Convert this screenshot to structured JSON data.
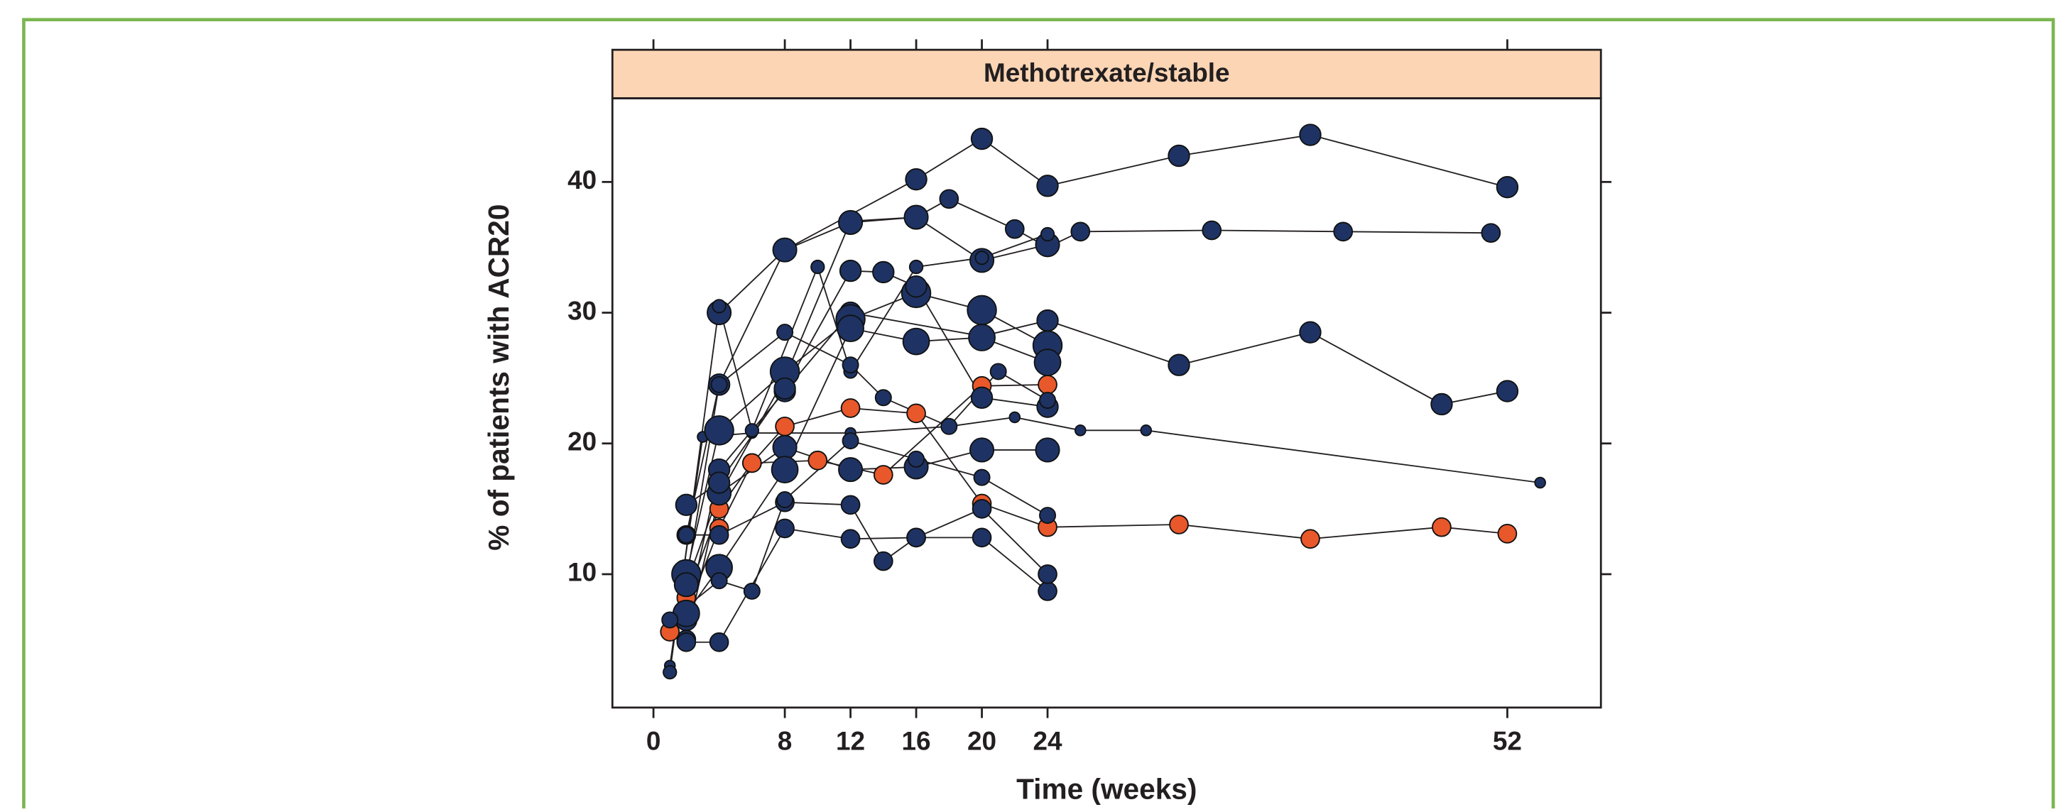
{
  "chart_data": {
    "type": "scatter",
    "panel_title": "Methotrexate/stable",
    "xlabel": "Time (weeks)",
    "ylabel": "% of patients with ACR20",
    "xlim": [
      -2.5,
      57.7
    ],
    "ylim": [
      -0.2,
      46.4
    ],
    "xticks": [
      0,
      8,
      12,
      16,
      20,
      24,
      52
    ],
    "yticks": [
      10,
      20,
      30,
      40
    ],
    "series": [
      {
        "color": "#1e3363",
        "size": 8,
        "x": [
          2,
          4,
          8,
          16,
          20,
          24,
          32,
          40,
          52
        ],
        "values": [
          9.5,
          24.5,
          34.8,
          40.2,
          43.3,
          39.7,
          42,
          43.6,
          39.6
        ]
      },
      {
        "color": "#1e3363",
        "size": 7,
        "x": [
          2,
          4,
          8,
          12,
          16,
          18,
          22,
          24,
          26,
          34,
          42,
          51
        ],
        "values": [
          5,
          16,
          25,
          37,
          37.3,
          38.7,
          36.4,
          35,
          36.2,
          36.3,
          36.2,
          36.1
        ]
      },
      {
        "color": "#1e3363",
        "size": 8,
        "x": [
          2,
          4,
          8,
          12,
          20,
          24,
          32,
          40,
          48,
          52
        ],
        "values": [
          6.5,
          18,
          24,
          30,
          28.2,
          29.4,
          26,
          28.5,
          23,
          24
        ]
      },
      {
        "color": "#1e3363",
        "size": 4,
        "x": [
          1,
          3,
          6,
          12,
          18,
          22,
          26,
          30,
          54
        ],
        "values": [
          3,
          20.5,
          20.8,
          20.8,
          21.3,
          22,
          21,
          21,
          17
        ]
      },
      {
        "color": "#e8582a",
        "size": 7,
        "x": [
          1,
          2,
          4,
          6,
          8,
          12,
          16,
          20,
          24,
          32,
          40,
          48,
          52
        ],
        "values": [
          5.6,
          7,
          13.5,
          18.5,
          21.3,
          22.7,
          22.3,
          15.4,
          13.6,
          13.8,
          12.7,
          13.6,
          13.1
        ]
      },
      {
        "color": "#e8582a",
        "size": 7,
        "x": [
          2,
          4,
          6,
          10,
          14,
          20,
          24
        ],
        "values": [
          8.2,
          15,
          18.5,
          18.7,
          17.6,
          24.4,
          24.5
        ]
      },
      {
        "color": "#1e3363",
        "size": 7,
        "x": [
          2,
          4,
          8,
          12,
          14,
          16,
          20,
          24
        ],
        "values": [
          13,
          13,
          15.5,
          15.3,
          11,
          12.8,
          12.8,
          8.7
        ]
      },
      {
        "color": "#1e3363",
        "size": 7,
        "x": [
          2,
          4,
          8,
          12,
          16,
          20,
          24
        ],
        "values": [
          4.8,
          4.8,
          13.5,
          12.7,
          12.8,
          15,
          10
        ]
      },
      {
        "color": "#1e3363",
        "size": 11,
        "x": [
          2,
          4,
          8,
          12,
          16,
          20,
          24
        ],
        "values": [
          10,
          21,
          25.5,
          29.5,
          31.5,
          30.2,
          27.5
        ]
      },
      {
        "color": "#1e3363",
        "size": 9,
        "x": [
          4,
          8,
          12,
          16,
          20,
          24
        ],
        "values": [
          30,
          34.8,
          36.9,
          37.3,
          34,
          35.2
        ]
      },
      {
        "color": "#1e3363",
        "size": 5,
        "x": [
          1,
          4,
          6,
          10,
          12,
          16,
          20,
          24
        ],
        "values": [
          2.5,
          30.5,
          21,
          33.5,
          25.5,
          33.5,
          34.2,
          36
        ]
      },
      {
        "color": "#1e3363",
        "size": 9,
        "x": [
          2,
          4,
          8,
          12,
          16,
          20,
          24
        ],
        "values": [
          9.2,
          16.2,
          19.7,
          18,
          18.2,
          19.5,
          19.5
        ]
      },
      {
        "color": "#1e3363",
        "size": 10,
        "x": [
          2,
          4,
          8,
          12,
          16,
          20,
          24
        ],
        "values": [
          7,
          10.5,
          18,
          28.8,
          27.8,
          28.1,
          26.2
        ]
      },
      {
        "color": "#1e3363",
        "size": 8,
        "x": [
          2,
          4,
          8,
          12,
          14,
          16,
          20,
          24
        ],
        "values": [
          15.3,
          17,
          24.2,
          33.2,
          33.1,
          32,
          23.5,
          22.8
        ]
      },
      {
        "color": "#1e3363",
        "size": 6,
        "x": [
          2,
          4,
          8,
          12,
          14,
          18,
          21,
          24
        ],
        "values": [
          13,
          24.5,
          28.5,
          26,
          23.5,
          21.3,
          25.5,
          23.3
        ]
      },
      {
        "color": "#1e3363",
        "size": 6,
        "x": [
          1,
          4,
          6,
          8,
          12,
          16,
          20,
          24
        ],
        "values": [
          6.5,
          9.5,
          8.7,
          15.7,
          20.2,
          18.8,
          17.4,
          14.5
        ]
      }
    ]
  }
}
